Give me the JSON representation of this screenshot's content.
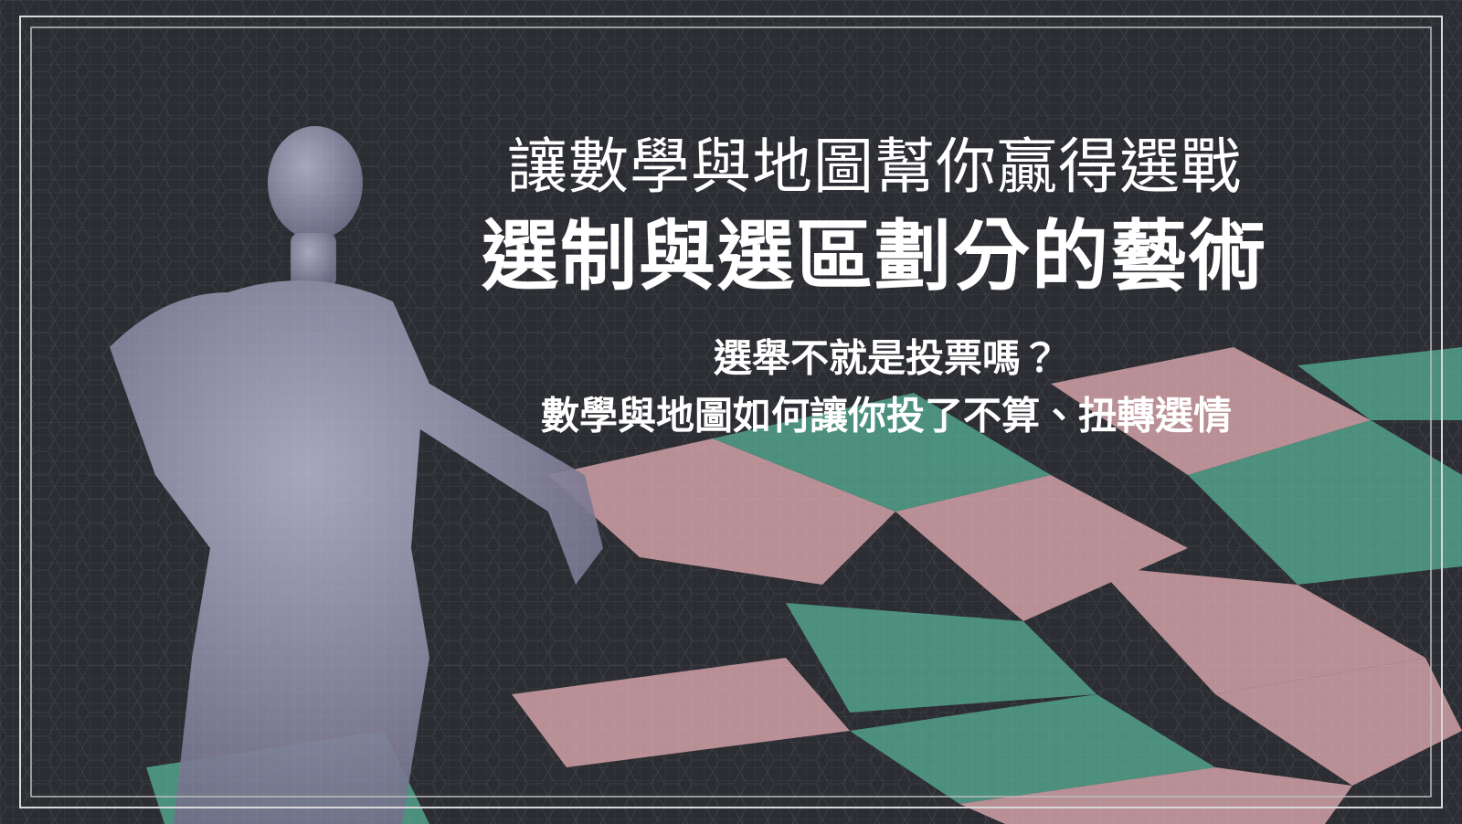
{
  "banner": {
    "title": "讓數學與地圖幫你贏得選戰",
    "subtitle": "選制與選區劃分的藝術",
    "tagline": [
      "選舉不就是投票嗎？",
      "數學與地圖如何讓你投了不算、扭轉選情"
    ]
  }
}
